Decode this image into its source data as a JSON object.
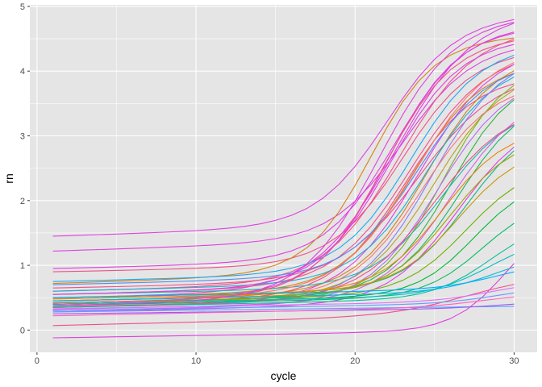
{
  "chart_data": {
    "type": "line",
    "title": "",
    "xlabel": "cycle",
    "ylabel": "rn",
    "xlim": [
      1,
      30
    ],
    "ylim": [
      -0.1,
      4.78
    ],
    "x_ticks": [
      0,
      10,
      20,
      30
    ],
    "y_ticks": [
      0,
      1,
      2,
      3,
      4,
      5
    ],
    "grid": true,
    "legend": "none",
    "panel_background": "#e5e5e5",
    "grid_color": "#ffffff",
    "x": [
      1,
      2,
      3,
      4,
      5,
      6,
      7,
      8,
      9,
      10,
      11,
      12,
      13,
      14,
      15,
      16,
      17,
      18,
      19,
      20,
      21,
      22,
      23,
      24,
      25,
      26,
      27,
      28,
      29,
      30
    ],
    "series_model": {
      "form": "logistic",
      "params": [
        "baseline",
        "baseline_slope",
        "plateau",
        "midpoint_cycle",
        "steepness"
      ]
    },
    "series": [
      {
        "color": "#e040e0",
        "baseline": 1.45,
        "baseline_slope": 0.008,
        "plateau": 3.2,
        "midpoint_cycle": 22.0,
        "steepness": 0.45
      },
      {
        "color": "#e040e0",
        "baseline": 1.22,
        "baseline_slope": 0.008,
        "plateau": 3.0,
        "midpoint_cycle": 23.0,
        "steepness": 0.45
      },
      {
        "color": "#e040e0",
        "baseline": -0.12,
        "baseline_slope": 0.004,
        "plateau": 1.8,
        "midpoint_cycle": 29.5,
        "steepness": 0.6
      },
      {
        "color": "#f0508a",
        "baseline": 0.07,
        "baseline_slope": 0.006,
        "plateau": 0.6,
        "midpoint_cycle": 27.0,
        "steepness": 0.4
      },
      {
        "color": "#e040e0",
        "baseline": 0.95,
        "baseline_slope": 0.006,
        "plateau": 3.6,
        "midpoint_cycle": 22.5,
        "steepness": 0.45
      },
      {
        "color": "#f0508a",
        "baseline": 0.9,
        "baseline_slope": 0.005,
        "plateau": 3.3,
        "midpoint_cycle": 23.0,
        "steepness": 0.45
      },
      {
        "color": "#d6831c",
        "baseline": 0.72,
        "baseline_slope": 0.008,
        "plateau": 3.6,
        "midpoint_cycle": 21.0,
        "steepness": 0.5
      },
      {
        "color": "#e040e0",
        "baseline": 0.5,
        "baseline_slope": 0.005,
        "plateau": 4.3,
        "midpoint_cycle": 22.5,
        "steepness": 0.4
      },
      {
        "color": "#e040e0",
        "baseline": 0.45,
        "baseline_slope": 0.005,
        "plateau": 4.1,
        "midpoint_cycle": 22.0,
        "steepness": 0.45
      },
      {
        "color": "#f0508a",
        "baseline": 0.6,
        "baseline_slope": 0.006,
        "plateau": 3.9,
        "midpoint_cycle": 22.8,
        "steepness": 0.42
      },
      {
        "color": "#f0508a",
        "baseline": 0.55,
        "baseline_slope": 0.006,
        "plateau": 3.6,
        "midpoint_cycle": 23.5,
        "steepness": 0.42
      },
      {
        "color": "#f0508a",
        "baseline": 0.4,
        "baseline_slope": 0.005,
        "plateau": 3.4,
        "midpoint_cycle": 23.0,
        "steepness": 0.45
      },
      {
        "color": "#f0508a",
        "baseline": 0.65,
        "baseline_slope": 0.005,
        "plateau": 3.2,
        "midpoint_cycle": 24.0,
        "steepness": 0.4
      },
      {
        "color": "#e040e0",
        "baseline": 0.35,
        "baseline_slope": 0.005,
        "plateau": 3.9,
        "midpoint_cycle": 24.0,
        "steepness": 0.42
      },
      {
        "color": "#d6831c",
        "baseline": 0.5,
        "baseline_slope": 0.005,
        "plateau": 3.5,
        "midpoint_cycle": 23.5,
        "steepness": 0.45
      },
      {
        "color": "#d6831c",
        "baseline": 0.45,
        "baseline_slope": 0.005,
        "plateau": 3.7,
        "midpoint_cycle": 24.5,
        "steepness": 0.45
      },
      {
        "color": "#b6a21c",
        "baseline": 0.4,
        "baseline_slope": 0.005,
        "plateau": 3.5,
        "midpoint_cycle": 25.0,
        "steepness": 0.45
      },
      {
        "color": "#7ab51c",
        "baseline": 0.38,
        "baseline_slope": 0.005,
        "plateau": 3.6,
        "midpoint_cycle": 25.5,
        "steepness": 0.5
      },
      {
        "color": "#2bb33a",
        "baseline": 0.42,
        "baseline_slope": 0.005,
        "plateau": 3.4,
        "midpoint_cycle": 26.0,
        "steepness": 0.5
      },
      {
        "color": "#1bb36a",
        "baseline": 0.45,
        "baseline_slope": 0.005,
        "plateau": 3.0,
        "midpoint_cycle": 26.5,
        "steepness": 0.5
      },
      {
        "color": "#19b38e",
        "baseline": 0.5,
        "baseline_slope": 0.005,
        "plateau": 2.6,
        "midpoint_cycle": 27.0,
        "steepness": 0.5
      },
      {
        "color": "#1ab5b0",
        "baseline": 0.55,
        "baseline_slope": 0.005,
        "plateau": 2.8,
        "midpoint_cycle": 25.5,
        "steepness": 0.45
      },
      {
        "color": "#1ab0d8",
        "baseline": 0.6,
        "baseline_slope": 0.006,
        "plateau": 3.4,
        "midpoint_cycle": 24.5,
        "steepness": 0.45
      },
      {
        "color": "#1ea8f0",
        "baseline": 0.75,
        "baseline_slope": 0.006,
        "plateau": 3.5,
        "midpoint_cycle": 23.5,
        "steepness": 0.45
      },
      {
        "color": "#4a90f8",
        "baseline": 0.7,
        "baseline_slope": 0.006,
        "plateau": 3.3,
        "midpoint_cycle": 24.0,
        "steepness": 0.45
      },
      {
        "color": "#8a7cf8",
        "baseline": 0.35,
        "baseline_slope": 0.005,
        "plateau": 3.8,
        "midpoint_cycle": 24.8,
        "steepness": 0.45
      },
      {
        "color": "#b56cf5",
        "baseline": 0.3,
        "baseline_slope": 0.005,
        "plateau": 3.5,
        "midpoint_cycle": 25.2,
        "steepness": 0.45
      },
      {
        "color": "#d35fe8",
        "baseline": 0.32,
        "baseline_slope": 0.005,
        "plateau": 3.2,
        "midpoint_cycle": 26.0,
        "steepness": 0.45
      },
      {
        "color": "#e040e0",
        "baseline": 0.28,
        "baseline_slope": 0.005,
        "plateau": 2.9,
        "midpoint_cycle": 26.5,
        "steepness": 0.45
      },
      {
        "color": "#f0508a",
        "baseline": 0.36,
        "baseline_slope": 0.005,
        "plateau": 3.0,
        "midpoint_cycle": 25.0,
        "steepness": 0.42
      },
      {
        "color": "#f8766d",
        "baseline": 0.4,
        "baseline_slope": 0.005,
        "plateau": 3.3,
        "midpoint_cycle": 24.2,
        "steepness": 0.45
      },
      {
        "color": "#f8766d",
        "baseline": 0.45,
        "baseline_slope": 0.005,
        "plateau": 3.8,
        "midpoint_cycle": 23.8,
        "steepness": 0.42
      },
      {
        "color": "#e58700",
        "baseline": 0.48,
        "baseline_slope": 0.005,
        "plateau": 2.5,
        "midpoint_cycle": 25.5,
        "steepness": 0.5
      },
      {
        "color": "#c99800",
        "baseline": 0.5,
        "baseline_slope": 0.005,
        "plateau": 2.2,
        "midpoint_cycle": 26.5,
        "steepness": 0.5
      },
      {
        "color": "#a3a500",
        "baseline": 0.45,
        "baseline_slope": 0.005,
        "plateau": 2.4,
        "midpoint_cycle": 26.0,
        "steepness": 0.5
      },
      {
        "color": "#6bb100",
        "baseline": 0.42,
        "baseline_slope": 0.005,
        "plateau": 2.0,
        "midpoint_cycle": 27.0,
        "steepness": 0.5
      },
      {
        "color": "#00ba38",
        "baseline": 0.4,
        "baseline_slope": 0.005,
        "plateau": 1.8,
        "midpoint_cycle": 27.5,
        "steepness": 0.55
      },
      {
        "color": "#00be67",
        "baseline": 0.38,
        "baseline_slope": 0.005,
        "plateau": 1.5,
        "midpoint_cycle": 28.0,
        "steepness": 0.55
      },
      {
        "color": "#00c19a",
        "baseline": 0.35,
        "baseline_slope": 0.005,
        "plateau": 1.2,
        "midpoint_cycle": 28.5,
        "steepness": 0.55
      },
      {
        "color": "#00bfc4",
        "baseline": 0.4,
        "baseline_slope": 0.005,
        "plateau": 0.9,
        "midpoint_cycle": 28.5,
        "steepness": 0.55
      },
      {
        "color": "#00b9e3",
        "baseline": 0.45,
        "baseline_slope": 0.005,
        "plateau": 0.6,
        "midpoint_cycle": 29.0,
        "steepness": 0.55
      },
      {
        "color": "#00adfa",
        "baseline": 0.5,
        "baseline_slope": 0.005,
        "plateau": 0.4,
        "midpoint_cycle": 29.0,
        "steepness": 0.55
      },
      {
        "color": "#619cff",
        "baseline": 0.3,
        "baseline_slope": 0.004,
        "plateau": 0.25,
        "midpoint_cycle": 29.0,
        "steepness": 0.55
      },
      {
        "color": "#619cff",
        "baseline": 0.28,
        "baseline_slope": 0.003,
        "plateau": 0.0,
        "midpoint_cycle": 29.0,
        "steepness": 0.55
      },
      {
        "color": "#9b59f5",
        "baseline": 0.25,
        "baseline_slope": 0.003,
        "plateau": 0.1,
        "midpoint_cycle": 29.0,
        "steepness": 0.55
      },
      {
        "color": "#db72fb",
        "baseline": 0.33,
        "baseline_slope": 0.004,
        "plateau": 0.3,
        "midpoint_cycle": 28.5,
        "steepness": 0.55
      },
      {
        "color": "#ff61c3",
        "baseline": 0.22,
        "baseline_slope": 0.005,
        "plateau": 0.2,
        "midpoint_cycle": 28.0,
        "steepness": 0.5
      },
      {
        "color": "#e040e0",
        "baseline": 0.38,
        "baseline_slope": 0.005,
        "plateau": 4.35,
        "midpoint_cycle": 21.5,
        "steepness": 0.42
      },
      {
        "color": "#f0508a",
        "baseline": 0.42,
        "baseline_slope": 0.005,
        "plateau": 4.0,
        "midpoint_cycle": 21.8,
        "steepness": 0.45
      },
      {
        "color": "#e040e0",
        "baseline": 0.55,
        "baseline_slope": 0.006,
        "plateau": 3.8,
        "midpoint_cycle": 22.2,
        "steepness": 0.45
      }
    ]
  }
}
